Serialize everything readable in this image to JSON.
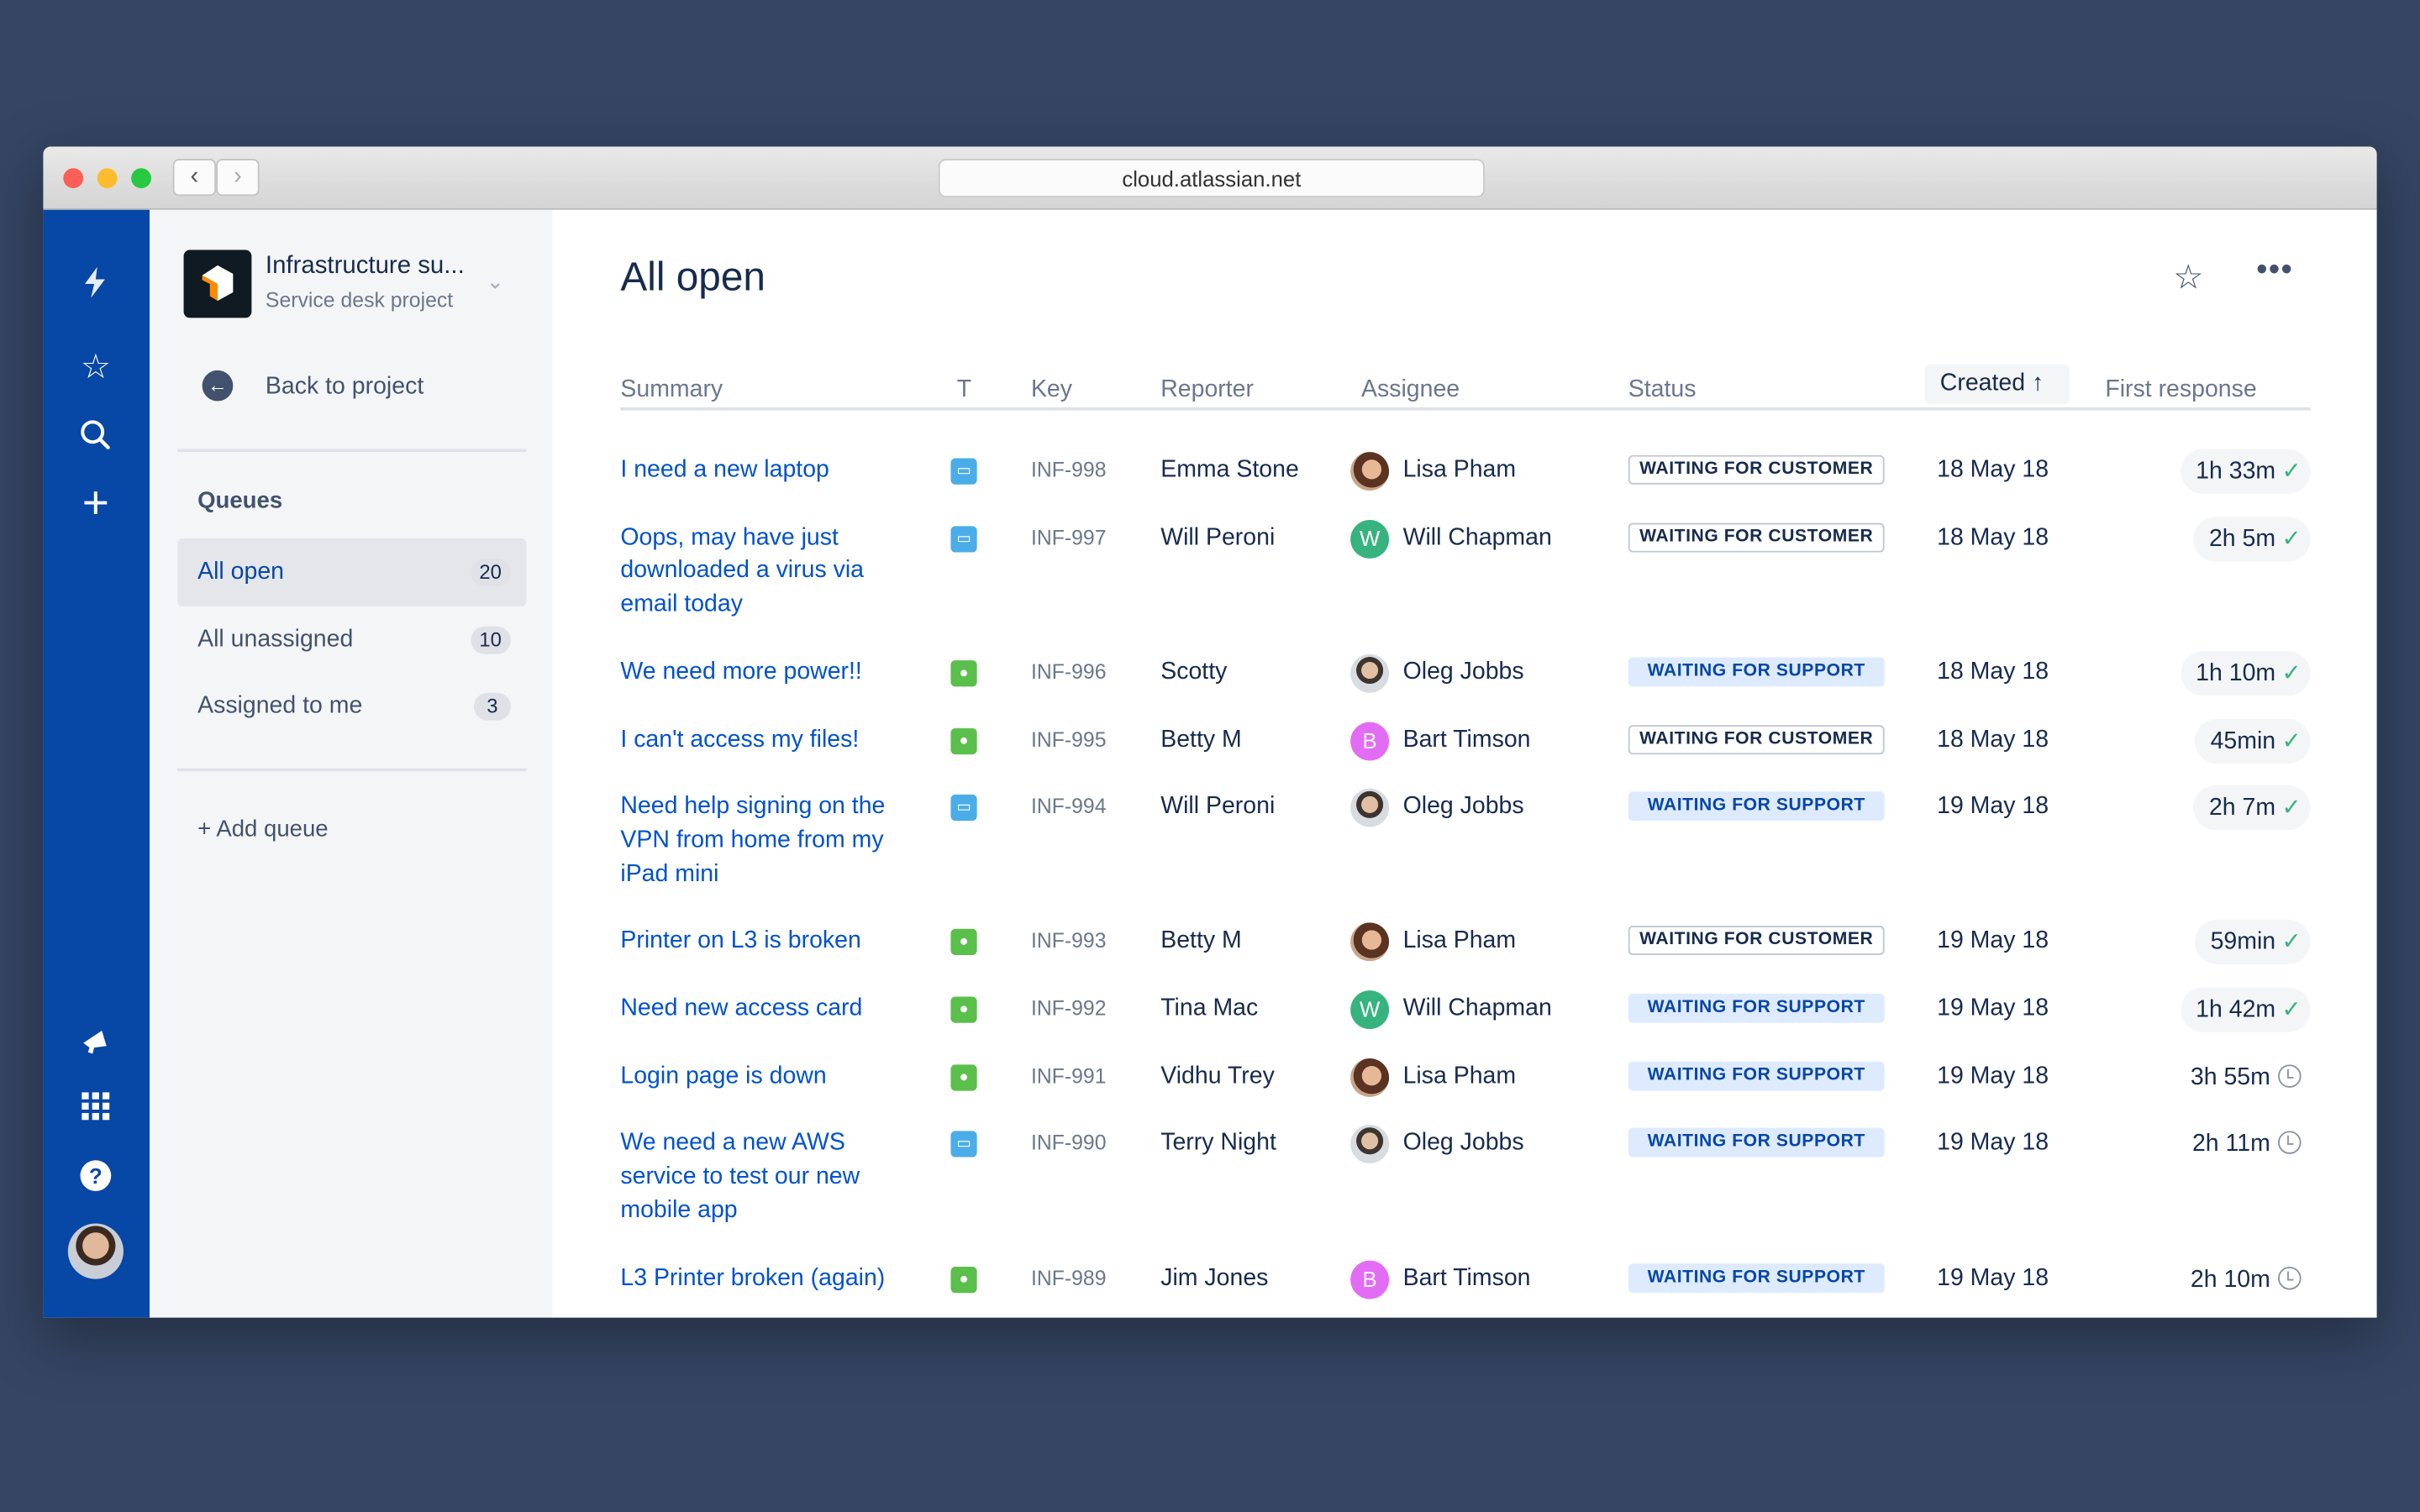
{
  "browser": {
    "url": "cloud.atlassian.net",
    "back": "‹",
    "forward": "›"
  },
  "project": {
    "name": "Infrastructure su...",
    "type": "Service desk project"
  },
  "sidebar": {
    "back_label": "Back to project",
    "queues_heading": "Queues",
    "queues": [
      {
        "label": "All open",
        "count": "20"
      },
      {
        "label": "All unassigned",
        "count": "10"
      },
      {
        "label": "Assigned to me",
        "count": "3"
      }
    ],
    "add_queue": "+ Add queue"
  },
  "page": {
    "title": "All open"
  },
  "table": {
    "headers": {
      "summary": "Summary",
      "type": "T",
      "key": "Key",
      "reporter": "Reporter",
      "assignee": "Assignee",
      "status": "Status",
      "created": "Created",
      "first_response": "First response"
    },
    "sort": {
      "column": "Created",
      "direction": "ascending",
      "arrow": "↑"
    },
    "rows": [
      {
        "summary": "I need a new laptop",
        "type": "computer",
        "key": "INF-998",
        "reporter": "Emma Stone",
        "assignee": "Lisa Pham",
        "avatar": "photo-lisa",
        "status": "WAITING FOR CUSTOMER",
        "created": "18 May 18",
        "first_response": "1h 33m",
        "met": true
      },
      {
        "summary": "Oops, may have just downloaded a virus via email today",
        "type": "computer",
        "key": "INF-997",
        "reporter": "Will Peroni",
        "assignee": "Will Chapman",
        "avatar": "W",
        "status": "WAITING FOR CUSTOMER",
        "created": "18 May 18",
        "first_response": "2h 5m",
        "met": true
      },
      {
        "summary": "We need more power!!",
        "type": "chat",
        "key": "INF-996",
        "reporter": "Scotty",
        "assignee": "Oleg Jobbs",
        "avatar": "photo-oleg",
        "status": "WAITING FOR SUPPORT",
        "created": "18 May 18",
        "first_response": "1h 10m",
        "met": true
      },
      {
        "summary": "I can't access my files!",
        "type": "chat",
        "key": "INF-995",
        "reporter": "Betty M",
        "assignee": "Bart Timson",
        "avatar": "B",
        "status": "WAITING FOR CUSTOMER",
        "created": "18 May 18",
        "first_response": "45min",
        "met": true
      },
      {
        "summary": "Need help signing on the VPN from home from my iPad mini",
        "type": "computer",
        "key": "INF-994",
        "reporter": "Will Peroni",
        "assignee": "Oleg Jobbs",
        "avatar": "photo-oleg",
        "status": "WAITING FOR SUPPORT",
        "created": "19 May 18",
        "first_response": "2h 7m",
        "met": true
      },
      {
        "summary": "Printer on L3 is broken",
        "type": "chat",
        "key": "INF-993",
        "reporter": "Betty M",
        "assignee": "Lisa Pham",
        "avatar": "photo-lisa",
        "status": "WAITING FOR CUSTOMER",
        "created": "19 May 18",
        "first_response": "59min",
        "met": true
      },
      {
        "summary": "Need new access card",
        "type": "chat",
        "key": "INF-992",
        "reporter": "Tina Mac",
        "assignee": "Will Chapman",
        "avatar": "W",
        "status": "WAITING FOR SUPPORT",
        "created": "19 May 18",
        "first_response": "1h 42m",
        "met": true
      },
      {
        "summary": "Login page is down",
        "type": "chat",
        "key": "INF-991",
        "reporter": "Vidhu Trey",
        "assignee": "Lisa Pham",
        "avatar": "photo-lisa",
        "status": "WAITING FOR SUPPORT",
        "created": "19 May 18",
        "first_response": "3h 55m",
        "met": false
      },
      {
        "summary": "We need a new AWS service to test our new mobile app",
        "type": "computer",
        "key": "INF-990",
        "reporter": "Terry Night",
        "assignee": "Oleg Jobbs",
        "avatar": "photo-oleg",
        "status": "WAITING FOR SUPPORT",
        "created": "19 May 18",
        "first_response": "2h 11m",
        "met": false
      },
      {
        "summary": "L3 Printer broken (again)",
        "type": "chat",
        "key": "INF-989",
        "reporter": "Jim Jones",
        "assignee": "Bart Timson",
        "avatar": "B",
        "status": "WAITING FOR SUPPORT",
        "created": "19 May 18",
        "first_response": "2h 10m",
        "met": false
      }
    ]
  },
  "colors": {
    "nav": "#0747A6",
    "link": "#0052CC",
    "computer_type": "#4BADE8",
    "chat_type": "#5BBF4B",
    "avatar_w": "#36B37E",
    "avatar_b": "#E36CF5",
    "check": "#36B37E",
    "support_badge": "#DEEBFF"
  }
}
